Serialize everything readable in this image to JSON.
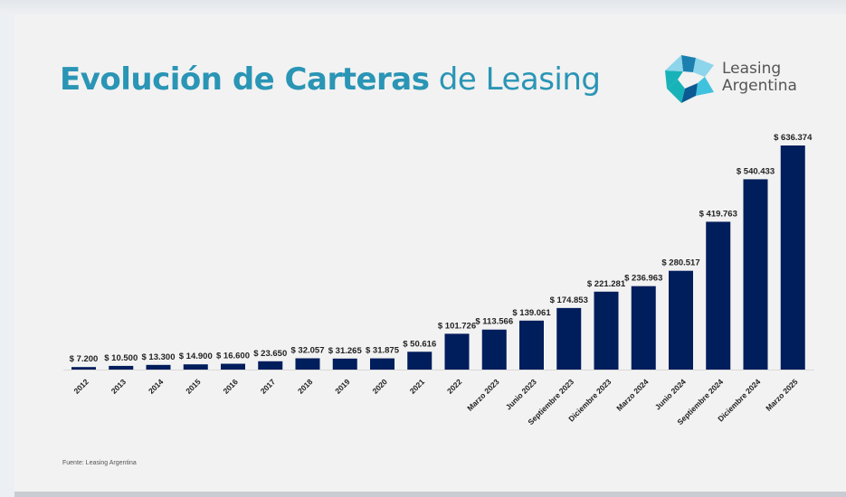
{
  "title": {
    "bold": "Evolución de Carteras",
    "light": "de Leasing"
  },
  "logo": {
    "icon": "star-logo-icon",
    "line1": "Leasing",
    "line2": "Argentina",
    "colors": [
      "#1b7fb0",
      "#3fc2de",
      "#0b5a93",
      "#17b3b8",
      "#8dd5ea"
    ]
  },
  "source": "Fuente: Leasing Argentina",
  "colors": {
    "bar": "#001d5c",
    "title": "#2a95b5",
    "background": "#f2f2f2",
    "axis": "#d9d9d9"
  },
  "chart_data": {
    "type": "bar",
    "title": "Evolución de Carteras de Leasing",
    "xlabel": "",
    "ylabel": "",
    "ylim": [
      0,
      636374
    ],
    "grid": false,
    "legend": "none",
    "value_prefix": "$ ",
    "categories": [
      "2012",
      "2013",
      "2014",
      "2015",
      "2016",
      "2017",
      "2018",
      "2019",
      "2020",
      "2021",
      "2022",
      "Marzo 2023",
      "Junio 2023",
      "Septiembre 2023",
      "Diciembre 2023",
      "Marzo 2024",
      "Junio 2024",
      "Septiembre 2024",
      "Diciembre 2024",
      "Marzo 2025"
    ],
    "values": [
      7200,
      10500,
      13300,
      14900,
      16600,
      23650,
      32057,
      31265,
      31875,
      50616,
      101726,
      113566,
      139061,
      174853,
      221281,
      236963,
      280517,
      419763,
      540433,
      636374
    ],
    "labels": [
      "$ 7.200",
      "$ 10.500",
      "$ 13.300",
      "$ 14.900",
      "$ 16.600",
      "$ 23.650",
      "$ 32.057",
      "$ 31.265",
      "$ 31.875",
      "$ 50.616",
      "$ 101.726",
      "$ 113.566",
      "$ 139.061",
      "$ 174.853",
      "$ 221.281",
      "$ 236.963",
      "$ 280.517",
      "$ 419.763",
      "$ 540.433",
      "$ 636.374"
    ]
  }
}
